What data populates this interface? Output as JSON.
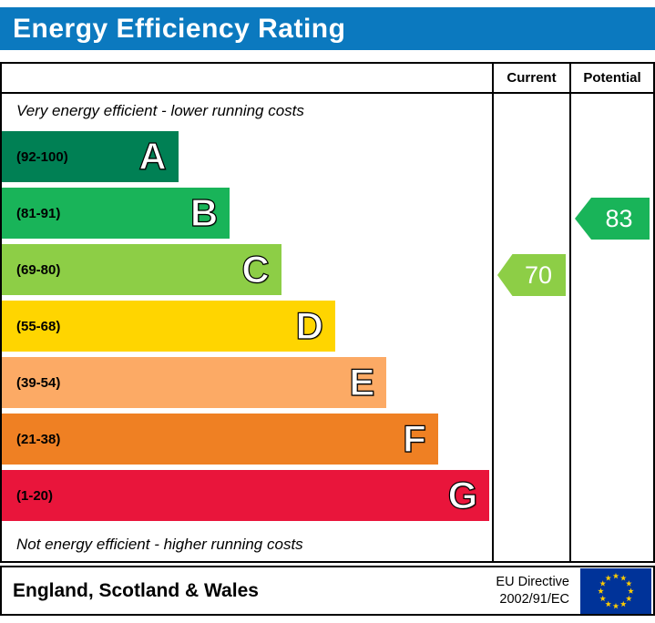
{
  "title": "Energy Efficiency Rating",
  "colors": {
    "title_bar": "#0b79bf",
    "border": "#000000"
  },
  "header": {
    "current_label": "Current",
    "potential_label": "Potential"
  },
  "notes": {
    "top": "Very energy efficient - lower running costs",
    "bottom": "Not energy efficient - higher running costs"
  },
  "chart_data": {
    "type": "bar",
    "title": "Energy Efficiency Rating",
    "bands": [
      {
        "letter": "A",
        "range": "(92-100)",
        "color": "#008054",
        "width_pct": 36
      },
      {
        "letter": "B",
        "range": "(81-91)",
        "color": "#19b459",
        "width_pct": 46.5
      },
      {
        "letter": "C",
        "range": "(69-80)",
        "color": "#8dce46",
        "width_pct": 57
      },
      {
        "letter": "D",
        "range": "(55-68)",
        "color": "#ffd500",
        "width_pct": 68
      },
      {
        "letter": "E",
        "range": "(39-54)",
        "color": "#fcaa65",
        "width_pct": 78.5
      },
      {
        "letter": "F",
        "range": "(21-38)",
        "color": "#ef8023",
        "width_pct": 89
      },
      {
        "letter": "G",
        "range": "(1-20)",
        "color": "#e9153b",
        "width_pct": 99.5
      }
    ],
    "current": {
      "value": "70",
      "band": "C",
      "band_index": 2,
      "color": "#8dce46"
    },
    "potential": {
      "value": "83",
      "band": "B",
      "band_index": 1,
      "color": "#19b459"
    }
  },
  "footer": {
    "region": "England, Scotland & Wales",
    "directive_line1": "EU Directive",
    "directive_line2": "2002/91/EC",
    "eu_flag": {
      "background": "#003399",
      "star_color": "#ffcc00"
    }
  }
}
